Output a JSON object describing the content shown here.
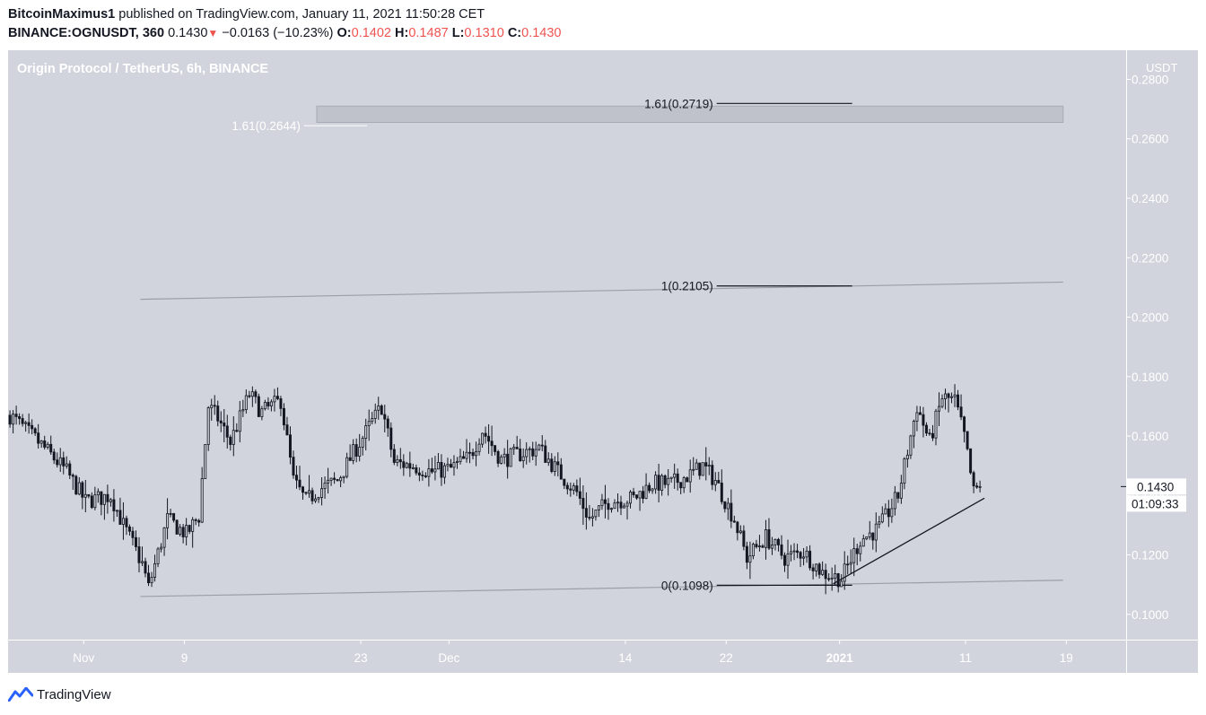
{
  "header": {
    "author": "BitcoinMaximus1",
    "published": "published on TradingView.com, January 11, 2021 11:50:28 CET",
    "symbol": "BINANCE:OGNUSDT, 360",
    "last": "0.1430",
    "change": "−0.0163 (−10.23%)",
    "open_label": "O:",
    "open": "0.1402",
    "high_label": "H:",
    "high": "0.1487",
    "low_label": "L:",
    "low": "0.1310",
    "close_label": "C:",
    "close": "0.1430"
  },
  "footer": {
    "brand": "TradingView",
    "logo_icon": "tradingview-logo-icon"
  },
  "colors": {
    "pane_bg": "#d1d4dc",
    "candle": "#131722",
    "channel_line": "#9b9ea6",
    "fib_box": "#bfc2ca",
    "fib_text": "#131722",
    "white_text": "#ffffff"
  },
  "chart_data": {
    "type": "candlestick",
    "title": "Origin Protocol / TetherUS, 6h, BINANCE",
    "y_axis_unit": "USDT",
    "ylim": [
      0.0915,
      0.2898
    ],
    "y_ticks": [
      "0.1000",
      "0.1200",
      "0.1400",
      "0.1600",
      "0.1800",
      "0.2000",
      "0.2200",
      "0.2400",
      "0.2600",
      "0.2800"
    ],
    "x_labels": [
      {
        "label": "Nov",
        "bar": 24,
        "bold": false
      },
      {
        "label": "9",
        "bar": 56,
        "bold": false
      },
      {
        "label": "23",
        "bar": 112,
        "bold": false
      },
      {
        "label": "Dec",
        "bar": 140,
        "bold": false
      },
      {
        "label": "14",
        "bar": 196,
        "bold": false
      },
      {
        "label": "22",
        "bar": 228,
        "bold": false
      },
      {
        "label": "2021",
        "bar": 264,
        "bold": true
      },
      {
        "label": "11",
        "bar": 304,
        "bold": false
      },
      {
        "label": "19",
        "bar": 336,
        "bold": false
      }
    ],
    "x_bar_count": 355,
    "last_price_label": "0.1430",
    "countdown_label": "01:09:33",
    "fib_levels": [
      {
        "label": "1.61(0.2719)",
        "value": 0.2719
      },
      {
        "label": "1(0.2105)",
        "value": 0.2105
      },
      {
        "label": "0(0.1098)",
        "value": 0.1098
      }
    ],
    "fib_level_bars": [
      225,
      268
    ],
    "fib_left": {
      "label": "1.61(0.2644)",
      "value": 0.2644,
      "bars": [
        94,
        114
      ]
    },
    "target_box": {
      "bars": [
        98,
        335
      ],
      "top": 0.271,
      "bottom": 0.2655
    },
    "channel": {
      "upper": [
        {
          "bar": 42,
          "value": 0.206
        },
        {
          "bar": 335,
          "value": 0.2118
        }
      ],
      "lower": [
        {
          "bar": 42,
          "value": 0.106
        },
        {
          "bar": 335,
          "value": 0.1115
        }
      ]
    },
    "support_line": [
      {
        "bar": 262,
        "value": 0.1103
      },
      {
        "bar": 310,
        "value": 0.1391
      }
    ],
    "candle_path": [
      [
        0,
        0.167
      ],
      [
        10,
        0.157
      ],
      [
        18,
        0.148
      ],
      [
        24,
        0.138
      ],
      [
        32,
        0.14
      ],
      [
        36,
        0.13
      ],
      [
        42,
        0.117
      ],
      [
        44,
        0.109
      ],
      [
        50,
        0.132
      ],
      [
        56,
        0.127
      ],
      [
        60,
        0.133
      ],
      [
        63,
        0.17
      ],
      [
        66,
        0.166
      ],
      [
        70,
        0.158
      ],
      [
        76,
        0.174
      ],
      [
        80,
        0.168
      ],
      [
        86,
        0.172
      ],
      [
        90,
        0.145
      ],
      [
        94,
        0.138
      ],
      [
        98,
        0.142
      ],
      [
        104,
        0.145
      ],
      [
        110,
        0.156
      ],
      [
        118,
        0.17
      ],
      [
        122,
        0.151
      ],
      [
        128,
        0.15
      ],
      [
        134,
        0.148
      ],
      [
        140,
        0.149
      ],
      [
        146,
        0.153
      ],
      [
        150,
        0.162
      ],
      [
        156,
        0.152
      ],
      [
        162,
        0.154
      ],
      [
        168,
        0.156
      ],
      [
        174,
        0.148
      ],
      [
        180,
        0.141
      ],
      [
        184,
        0.132
      ],
      [
        190,
        0.138
      ],
      [
        198,
        0.139
      ],
      [
        204,
        0.144
      ],
      [
        210,
        0.144
      ],
      [
        216,
        0.147
      ],
      [
        220,
        0.15
      ],
      [
        224,
        0.145
      ],
      [
        230,
        0.132
      ],
      [
        234,
        0.119
      ],
      [
        240,
        0.126
      ],
      [
        246,
        0.119
      ],
      [
        252,
        0.121
      ],
      [
        258,
        0.114
      ],
      [
        264,
        0.112
      ],
      [
        270,
        0.125
      ],
      [
        276,
        0.129
      ],
      [
        282,
        0.14
      ],
      [
        288,
        0.17
      ],
      [
        292,
        0.158
      ],
      [
        296,
        0.173
      ],
      [
        300,
        0.172
      ],
      [
        303,
        0.16
      ],
      [
        306,
        0.141
      ],
      [
        308,
        0.143
      ]
    ]
  }
}
